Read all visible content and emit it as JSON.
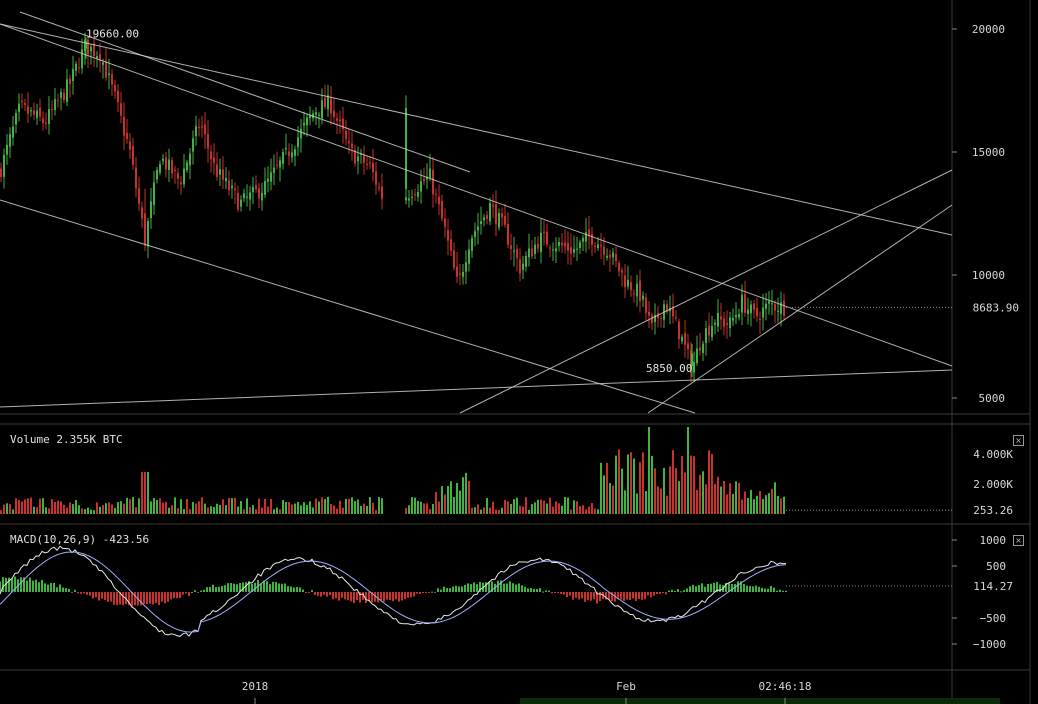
{
  "chart_data": [
    {
      "type": "candlestick",
      "pane": "price",
      "y_ticks": [
        20000,
        15000,
        10000,
        5000
      ],
      "ylim": [
        4300,
        21400
      ],
      "last_price": 8683.9,
      "last_price_label": "8683.90",
      "annotations": [
        {
          "text": "19660.00",
          "value": 19660
        },
        {
          "text": "5850.00",
          "value": 5850
        }
      ],
      "trendlines": 7,
      "colors": {
        "up": "#3fb53f",
        "down": "#c8312c",
        "lines": "#d0d0d0"
      }
    },
    {
      "type": "bar",
      "pane": "volume",
      "title": "Volume",
      "title_value": "2.355K BTC",
      "y_tick_labels": [
        "4.000K",
        "2.000K"
      ],
      "y_ticks": [
        4000,
        2000
      ],
      "last_value_label": "253.26",
      "last_value": 253.26,
      "ylim": [
        0,
        5800
      ]
    },
    {
      "type": "macd",
      "pane": "macd",
      "title": "MACD(10,26,9)",
      "title_value": "-423.56",
      "y_ticks": [
        1000,
        500,
        -500,
        -1000
      ],
      "y_tick_labels": [
        "1000",
        "500",
        "−500",
        "−1000"
      ],
      "last_value_label": "114.27",
      "last_value": 114.27,
      "ylim": [
        -1400,
        1250
      ]
    }
  ],
  "x_labels": [
    {
      "text": "2018"
    },
    {
      "text": "Feb"
    },
    {
      "text": "02:46:18"
    }
  ],
  "close_symbol": "×"
}
